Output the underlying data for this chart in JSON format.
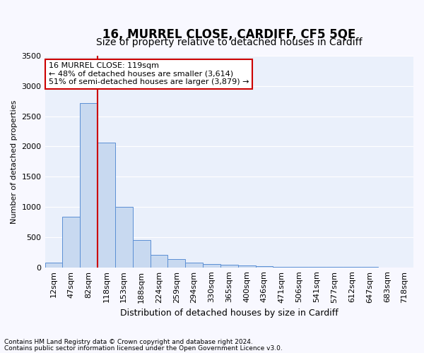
{
  "title1": "16, MURREL CLOSE, CARDIFF, CF5 5QE",
  "title2": "Size of property relative to detached houses in Cardiff",
  "xlabel": "Distribution of detached houses by size in Cardiff",
  "ylabel": "Number of detached properties",
  "categories": [
    "12sqm",
    "47sqm",
    "82sqm",
    "118sqm",
    "153sqm",
    "188sqm",
    "224sqm",
    "259sqm",
    "294sqm",
    "330sqm",
    "365sqm",
    "400sqm",
    "436sqm",
    "471sqm",
    "506sqm",
    "541sqm",
    "577sqm",
    "612sqm",
    "647sqm",
    "683sqm",
    "718sqm"
  ],
  "values": [
    75,
    840,
    2720,
    2060,
    1000,
    450,
    210,
    135,
    75,
    55,
    40,
    30,
    20,
    12,
    8,
    6,
    5,
    4,
    3,
    2,
    2
  ],
  "bar_color": "#c8d9f0",
  "bar_edge_color": "#5b8fd4",
  "annotation_text": "16 MURREL CLOSE: 119sqm\n← 48% of detached houses are smaller (3,614)\n51% of semi-detached houses are larger (3,879) →",
  "annotation_box_facecolor": "#ffffff",
  "annotation_box_edgecolor": "#cc0000",
  "property_line_color": "#cc0000",
  "ylim": [
    0,
    3500
  ],
  "footnote1": "Contains HM Land Registry data © Crown copyright and database right 2024.",
  "footnote2": "Contains public sector information licensed under the Open Government Licence v3.0.",
  "plot_bg_color": "#eaf0fb",
  "fig_bg_color": "#f8f8ff",
  "grid_color": "#ffffff",
  "title1_fontsize": 12,
  "title2_fontsize": 10,
  "tick_fontsize": 8,
  "ylabel_fontsize": 8,
  "xlabel_fontsize": 9,
  "annot_fontsize": 8
}
